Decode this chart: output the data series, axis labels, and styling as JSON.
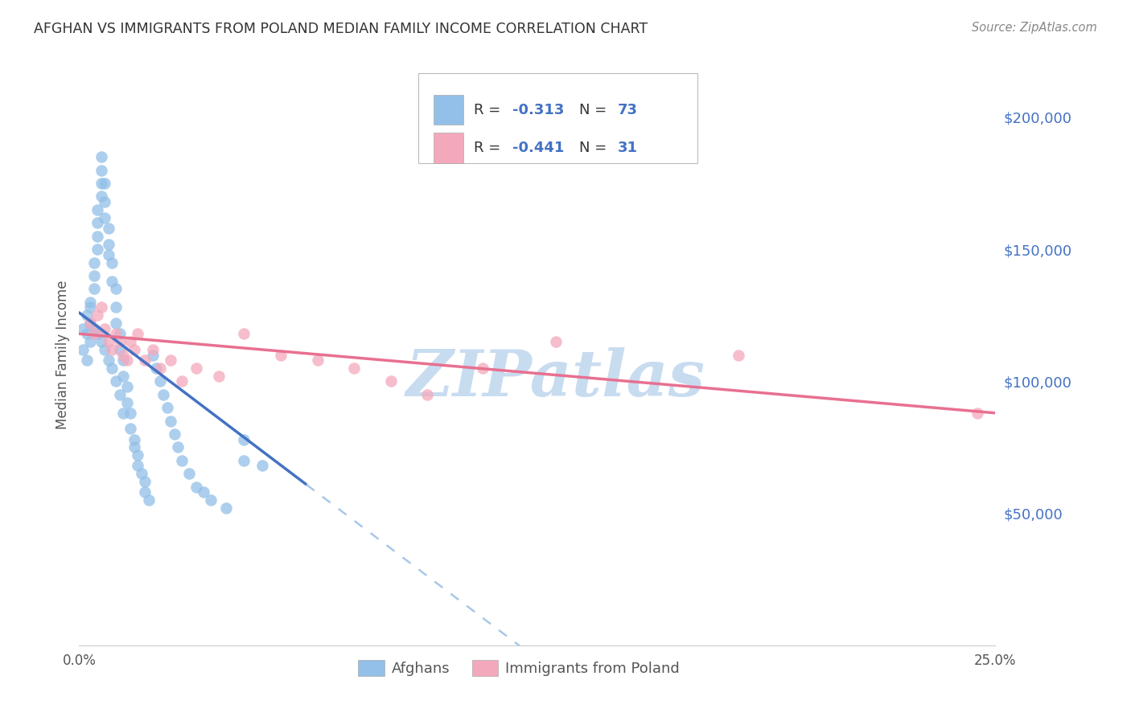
{
  "title": "AFGHAN VS IMMIGRANTS FROM POLAND MEDIAN FAMILY INCOME CORRELATION CHART",
  "source": "Source: ZipAtlas.com",
  "ylabel": "Median Family Income",
  "xlim": [
    0.0,
    0.25
  ],
  "ylim": [
    0,
    220000
  ],
  "ytick_vals": [
    50000,
    100000,
    150000,
    200000
  ],
  "ytick_labels": [
    "$50,000",
    "$100,000",
    "$150,000",
    "$200,000"
  ],
  "legend_label1": "Afghans",
  "legend_label2": "Immigrants from Poland",
  "color_blue": "#92C0E8",
  "color_pink": "#F4A8BC",
  "color_blue_line": "#4472C4",
  "color_pink_line": "#E87090",
  "color_dashed": "#A8C8E8",
  "watermark": "ZIPatlas",
  "watermark_color": "#C8DCF0",
  "afghans_x": [
    0.001,
    0.002,
    0.002,
    0.003,
    0.003,
    0.003,
    0.004,
    0.004,
    0.004,
    0.005,
    0.005,
    0.005,
    0.005,
    0.006,
    0.006,
    0.006,
    0.006,
    0.007,
    0.007,
    0.007,
    0.008,
    0.008,
    0.008,
    0.009,
    0.009,
    0.01,
    0.01,
    0.01,
    0.011,
    0.011,
    0.012,
    0.012,
    0.013,
    0.013,
    0.014,
    0.014,
    0.015,
    0.015,
    0.016,
    0.016,
    0.017,
    0.018,
    0.018,
    0.019,
    0.02,
    0.021,
    0.022,
    0.023,
    0.024,
    0.025,
    0.026,
    0.027,
    0.028,
    0.03,
    0.032,
    0.034,
    0.036,
    0.04,
    0.045,
    0.05,
    0.001,
    0.002,
    0.003,
    0.004,
    0.005,
    0.006,
    0.007,
    0.008,
    0.009,
    0.01,
    0.011,
    0.012,
    0.045
  ],
  "afghans_y": [
    120000,
    125000,
    118000,
    128000,
    122000,
    130000,
    135000,
    140000,
    145000,
    150000,
    155000,
    160000,
    165000,
    170000,
    175000,
    180000,
    185000,
    175000,
    168000,
    162000,
    158000,
    152000,
    148000,
    145000,
    138000,
    135000,
    128000,
    122000,
    118000,
    112000,
    108000,
    102000,
    98000,
    92000,
    88000,
    82000,
    78000,
    75000,
    72000,
    68000,
    65000,
    62000,
    58000,
    55000,
    110000,
    105000,
    100000,
    95000,
    90000,
    85000,
    80000,
    75000,
    70000,
    65000,
    60000,
    58000,
    55000,
    52000,
    70000,
    68000,
    112000,
    108000,
    115000,
    120000,
    118000,
    115000,
    112000,
    108000,
    105000,
    100000,
    95000,
    88000,
    78000
  ],
  "poland_x": [
    0.003,
    0.004,
    0.005,
    0.006,
    0.007,
    0.008,
    0.009,
    0.01,
    0.011,
    0.012,
    0.013,
    0.014,
    0.015,
    0.016,
    0.018,
    0.02,
    0.022,
    0.025,
    0.028,
    0.032,
    0.038,
    0.045,
    0.055,
    0.065,
    0.075,
    0.085,
    0.095,
    0.11,
    0.13,
    0.18,
    0.245
  ],
  "poland_y": [
    122000,
    118000,
    125000,
    128000,
    120000,
    115000,
    112000,
    118000,
    115000,
    110000,
    108000,
    115000,
    112000,
    118000,
    108000,
    112000,
    105000,
    108000,
    100000,
    105000,
    102000,
    118000,
    110000,
    108000,
    105000,
    100000,
    95000,
    105000,
    115000,
    110000,
    88000
  ]
}
